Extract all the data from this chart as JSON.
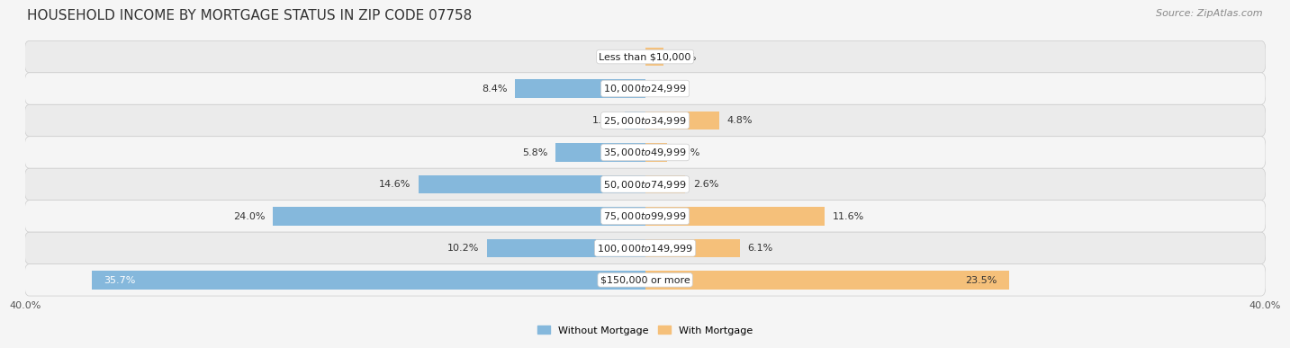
{
  "title": "HOUSEHOLD INCOME BY MORTGAGE STATUS IN ZIP CODE 07758",
  "source": "Source: ZipAtlas.com",
  "categories": [
    "Less than $10,000",
    "$10,000 to $24,999",
    "$25,000 to $34,999",
    "$35,000 to $49,999",
    "$50,000 to $74,999",
    "$75,000 to $99,999",
    "$100,000 to $149,999",
    "$150,000 or more"
  ],
  "without_mortgage": [
    0.0,
    8.4,
    1.3,
    5.8,
    14.6,
    24.0,
    10.2,
    35.7
  ],
  "with_mortgage": [
    1.2,
    0.0,
    4.8,
    1.4,
    2.6,
    11.6,
    6.1,
    23.5
  ],
  "color_without": "#85b8dc",
  "color_with": "#f5c07a",
  "axis_max": 40.0,
  "row_bg_color": "#ebebeb",
  "row_bg_color_alt": "#f5f5f5",
  "fig_bg_color": "#f5f5f5",
  "legend_label_without": "Without Mortgage",
  "legend_label_with": "With Mortgage",
  "title_fontsize": 11,
  "source_fontsize": 8,
  "label_fontsize": 8,
  "cat_fontsize": 8,
  "bar_height": 0.58,
  "x_tick_labels": [
    "40.0%",
    "",
    "40.0%"
  ],
  "x_tick_positions": [
    -40.0,
    0.0,
    40.0
  ]
}
